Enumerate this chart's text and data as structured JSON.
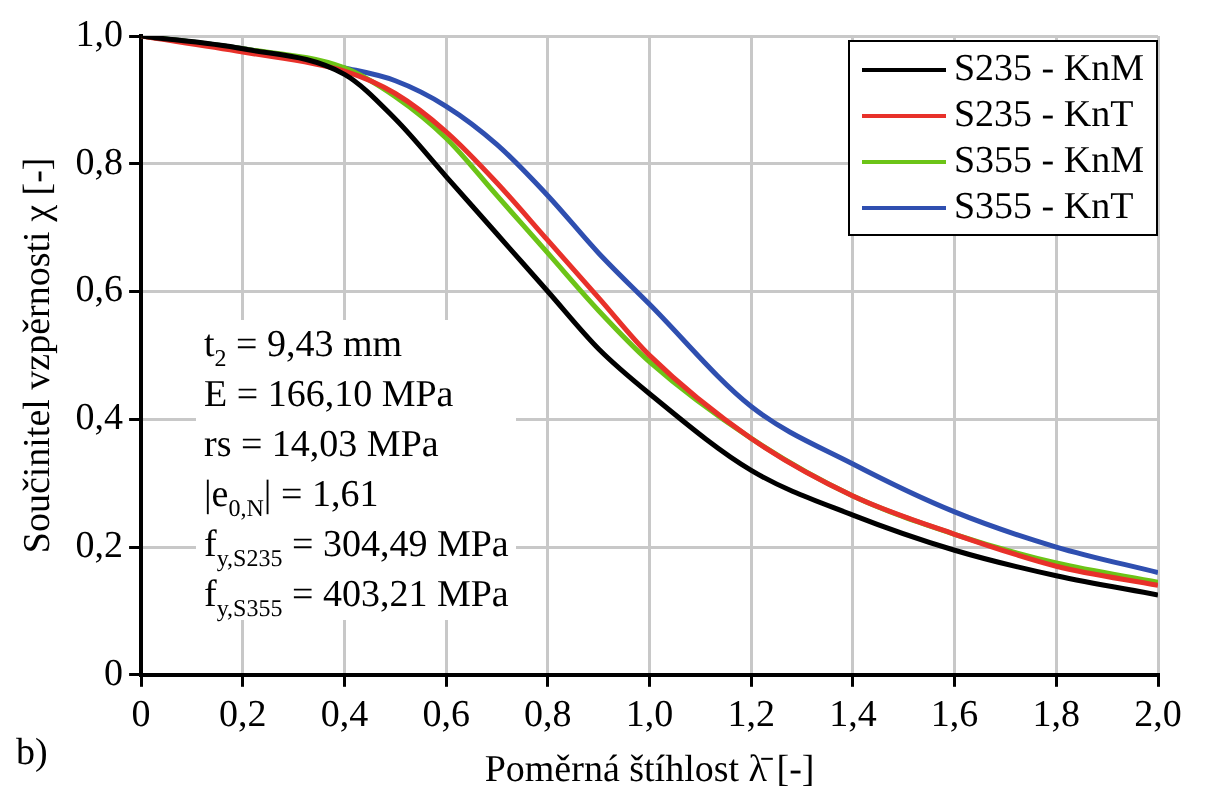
{
  "chart_data": {
    "type": "line",
    "xlabel": "Poměrná štíhlost λ̄ [-]",
    "ylabel": "Součinitel vzpěrnosti χ [-]",
    "x": [
      0,
      0.2,
      0.4,
      0.5,
      0.6,
      0.7,
      0.8,
      0.9,
      1.0,
      1.2,
      1.4,
      1.6,
      1.8,
      2.0
    ],
    "series": [
      {
        "name": "S235 - KnM",
        "color": "#000000",
        "values": [
          1.0,
          0.98,
          0.94,
          0.87,
          0.78,
          0.69,
          0.6,
          0.51,
          0.44,
          0.32,
          0.25,
          0.195,
          0.155,
          0.125
        ]
      },
      {
        "name": "S235 - KnT",
        "color": "#e8312a",
        "values": [
          1.0,
          0.975,
          0.945,
          0.91,
          0.85,
          0.77,
          0.68,
          0.59,
          0.5,
          0.37,
          0.28,
          0.22,
          0.17,
          0.14
        ]
      },
      {
        "name": "S355 - KnM",
        "color": "#6cc417",
        "values": [
          1.0,
          0.98,
          0.95,
          0.905,
          0.84,
          0.75,
          0.66,
          0.57,
          0.49,
          0.37,
          0.28,
          0.22,
          0.175,
          0.145
        ]
      },
      {
        "name": "S355 - KnT",
        "color": "#2f4fb0",
        "values": [
          1.0,
          0.98,
          0.95,
          0.93,
          0.89,
          0.83,
          0.75,
          0.66,
          0.58,
          0.42,
          0.33,
          0.255,
          0.2,
          0.16
        ]
      }
    ],
    "xlim": [
      0,
      2
    ],
    "ylim": [
      0,
      1
    ],
    "xticks": [
      0,
      {
        "value": 0.2,
        "label": "0,2"
      },
      {
        "value": 0.4,
        "label": "0,4"
      },
      {
        "value": 0.6,
        "label": "0,6"
      },
      {
        "value": 0.8,
        "label": "0,8"
      },
      {
        "value": 1.0,
        "label": "1,0"
      },
      {
        "value": 1.2,
        "label": "1,2"
      },
      {
        "value": 1.4,
        "label": "1,4"
      },
      {
        "value": 1.6,
        "label": "1,6"
      },
      {
        "value": 1.8,
        "label": "1,8"
      },
      {
        "value": 2.0,
        "label": "2,0"
      }
    ],
    "yticks": [
      0,
      {
        "value": 0.2,
        "label": "0,2"
      },
      {
        "value": 0.4,
        "label": "0,4"
      },
      {
        "value": 0.6,
        "label": "0,6"
      },
      {
        "value": 0.8,
        "label": "0,8"
      },
      {
        "value": 1.0,
        "label": "1,0"
      }
    ],
    "grid": true,
    "legend": "top right",
    "marker": "none",
    "line_style": "solid",
    "annotations": [
      "t$_{2}$ = 9,43 mm",
      "E = 166,10 MPa",
      "rs = 14,03 MPa",
      "|e$_{0,N}$| = 1,61",
      "f$_{y,S235}$ = 304,49 MPa",
      "f$_{y,S355}$ = 403,21 MPa",
      "b)"
    ]
  }
}
